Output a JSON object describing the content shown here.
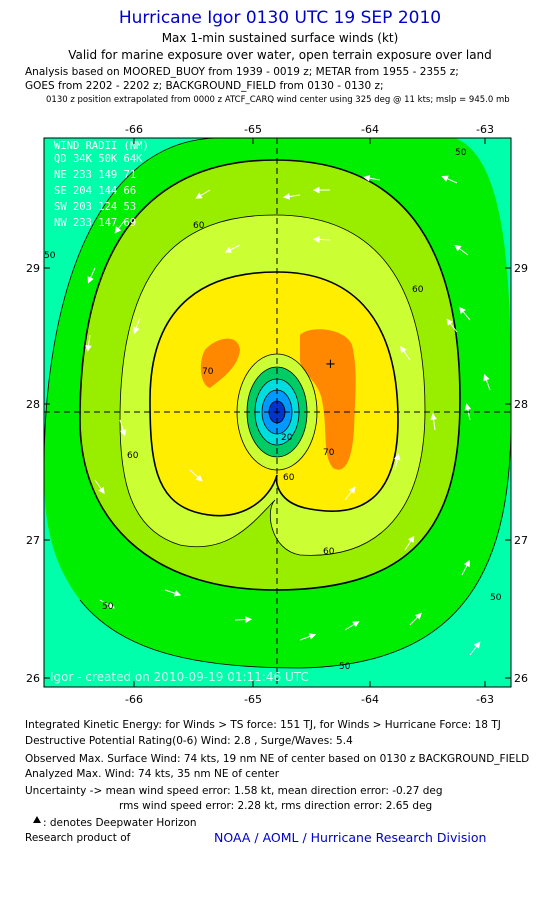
{
  "header": {
    "title": "Hurricane Igor 0130 UTC 19 SEP 2010",
    "subtitle1": "Max 1-min sustained surface winds (kt)",
    "subtitle2": "Valid for marine exposure over water, open terrain exposure over land",
    "analysis1": "Analysis based on MOORED_BUOY from 1939 - 0019 z; METAR from 1955 - 2355 z;",
    "analysis2": "GOES from 2202 - 2202 z; BACKGROUND_FIELD from 0130 - 0130 z;",
    "analysis3": "0130 z position extrapolated from 0000 z ATCF_CARQ wind center using 325 deg @ 11 kts; mslp = 945.0 mb"
  },
  "map": {
    "lon_ticks": [
      "-66",
      "-65",
      "-64",
      "-63"
    ],
    "lat_ticks": [
      "29",
      "28",
      "27",
      "26"
    ],
    "lon_range": [
      -66.8,
      -62.8
    ],
    "lat_range": [
      25.95,
      29.95
    ],
    "center": {
      "lon": -64.95,
      "lat": 27.92
    },
    "contour_labels": {
      "c50_top": "50",
      "c50_left": "50",
      "c50_right": "50",
      "c50_bottom": "50",
      "c50_inner": "50",
      "c60_top": "60",
      "c60_left": "60",
      "c60_right": "60",
      "c60_bottom": "60",
      "c60_inner": "60",
      "c70_left": "70",
      "c70_right": "70",
      "c20": "20"
    },
    "colors": {
      "c40": "#00ffaa",
      "c50": "#00ee00",
      "c60": "#99ee00",
      "c65": "#ccff33",
      "c70": "#ffee00",
      "c80": "#ff8800",
      "inner1": "#00cc66",
      "inner2": "#00dddd",
      "inner3": "#0099ff",
      "inner4": "#0033cc"
    },
    "watermark": "Igor - created on 2010-09-19 01:11:46 UTC",
    "wind_radii": {
      "heading": "WIND RADII (NM)",
      "cols": "QD  34K  50K  64K",
      "rows": [
        "NE  233  149   71",
        "SE  204  144   66",
        "SW  203  124   53",
        "NW  233  147   69"
      ]
    },
    "max_wind_marker": "+"
  },
  "footer": {
    "ike": "Integrated Kinetic Energy:  for Winds > TS force: 151 TJ,  for Winds > Hurricane Force: 18 TJ",
    "dpr": "Destructive Potential Rating(0-6)   Wind: 2.8 , Surge/Waves: 5.4",
    "obs": "Observed Max. Surface Wind: 74 kts, 19 nm NE of center based on 0130 z BACKGROUND_FIELD",
    "analyzed": "Analyzed Max. Wind: 74 kts, 35 nm NE of center",
    "unc1": "Uncertainty -> mean wind speed error: 1.58 kt,   mean direction error:  -0.27 deg",
    "unc2": "rms wind speed error: 2.28 kt,   rms direction error: 2.65 deg",
    "dwh": ": denotes Deepwater Horizon",
    "research": "Research product of",
    "credit": "NOAA / AOML / Hurricane Research Division"
  }
}
